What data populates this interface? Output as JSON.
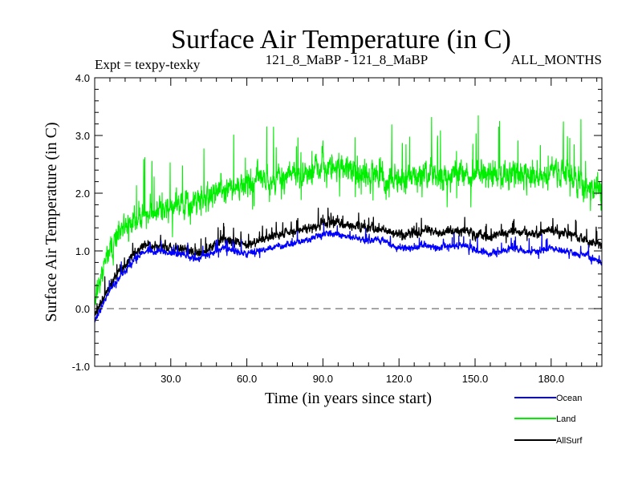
{
  "chart_data": {
    "type": "line",
    "title": "Surface Air Temperature (in C)",
    "experiment_label": "Expt = texpy-texky",
    "comparison_label": "121_8_MaBP - 121_8_MaBP",
    "period_label": "ALL_MONTHS",
    "xlabel": "Time (in years since start)",
    "ylabel": "Surface Air Temperature (in C)",
    "xlim": [
      0,
      200
    ],
    "ylim": [
      -1.0,
      4.0
    ],
    "x_ticks": [
      30,
      60,
      90,
      120,
      150,
      180
    ],
    "x_tick_labels": [
      "30.0",
      "60.0",
      "90.0",
      "120.0",
      "150.0",
      "180.0"
    ],
    "y_ticks": [
      -1,
      0,
      1,
      2,
      3,
      4
    ],
    "y_tick_labels": [
      "-1.0",
      "0.0",
      "1.0",
      "2.0",
      "3.0",
      "4.0"
    ],
    "reference_line": {
      "y": 0.0,
      "style": "dashed",
      "color": "#707070"
    },
    "legend_position": "bottom-right",
    "series": [
      {
        "name": "Ocean",
        "color": "#0000ff",
        "x": [
          0,
          2,
          4,
          6,
          8,
          10,
          12,
          14,
          16,
          18,
          20,
          25,
          30,
          35,
          40,
          45,
          50,
          55,
          60,
          65,
          70,
          75,
          80,
          85,
          90,
          95,
          100,
          105,
          110,
          115,
          120,
          125,
          130,
          135,
          140,
          145,
          150,
          155,
          160,
          165,
          170,
          175,
          180,
          185,
          190,
          195,
          200
        ],
        "values": [
          -0.2,
          -0.05,
          0.15,
          0.3,
          0.45,
          0.55,
          0.65,
          0.75,
          0.85,
          0.95,
          1.0,
          1.0,
          0.95,
          0.95,
          0.85,
          0.95,
          1.05,
          1.0,
          0.95,
          1.0,
          1.05,
          1.1,
          1.15,
          1.2,
          1.3,
          1.3,
          1.25,
          1.2,
          1.2,
          1.15,
          1.05,
          1.05,
          1.1,
          1.05,
          1.1,
          1.1,
          1.0,
          0.95,
          1.0,
          1.05,
          1.0,
          1.0,
          1.05,
          1.0,
          0.95,
          0.9,
          0.8
        ]
      },
      {
        "name": "Land",
        "color": "#00ee00",
        "x": [
          0,
          2,
          4,
          6,
          8,
          10,
          12,
          14,
          16,
          18,
          20,
          25,
          30,
          35,
          40,
          45,
          50,
          55,
          60,
          65,
          70,
          75,
          80,
          85,
          90,
          95,
          100,
          105,
          110,
          115,
          120,
          125,
          130,
          135,
          140,
          145,
          150,
          155,
          160,
          165,
          170,
          175,
          180,
          185,
          190,
          195,
          200
        ],
        "values": [
          0.2,
          0.5,
          0.8,
          1.0,
          1.15,
          1.3,
          1.4,
          1.5,
          1.55,
          1.6,
          1.65,
          1.7,
          1.75,
          1.8,
          1.8,
          1.95,
          2.1,
          2.1,
          2.15,
          2.2,
          2.25,
          2.3,
          2.35,
          2.4,
          2.45,
          2.45,
          2.4,
          2.3,
          2.3,
          2.25,
          2.25,
          2.25,
          2.3,
          2.3,
          2.35,
          2.35,
          2.3,
          2.3,
          2.3,
          2.35,
          2.3,
          2.3,
          2.35,
          2.3,
          2.2,
          2.05,
          2.1
        ]
      },
      {
        "name": "AllSurf",
        "color": "#000000",
        "x": [
          0,
          2,
          4,
          6,
          8,
          10,
          12,
          14,
          16,
          18,
          20,
          25,
          30,
          35,
          40,
          45,
          50,
          55,
          60,
          65,
          70,
          75,
          80,
          85,
          90,
          95,
          100,
          105,
          110,
          115,
          120,
          125,
          130,
          135,
          140,
          145,
          150,
          155,
          160,
          165,
          170,
          175,
          180,
          185,
          190,
          195,
          200
        ],
        "values": [
          -0.1,
          0.05,
          0.25,
          0.4,
          0.55,
          0.65,
          0.75,
          0.85,
          0.95,
          1.05,
          1.1,
          1.1,
          1.05,
          1.05,
          0.95,
          1.05,
          1.2,
          1.15,
          1.1,
          1.2,
          1.25,
          1.3,
          1.35,
          1.4,
          1.5,
          1.5,
          1.45,
          1.4,
          1.4,
          1.35,
          1.3,
          1.3,
          1.35,
          1.3,
          1.35,
          1.35,
          1.3,
          1.25,
          1.3,
          1.35,
          1.3,
          1.3,
          1.35,
          1.3,
          1.25,
          1.15,
          1.1
        ]
      }
    ]
  }
}
